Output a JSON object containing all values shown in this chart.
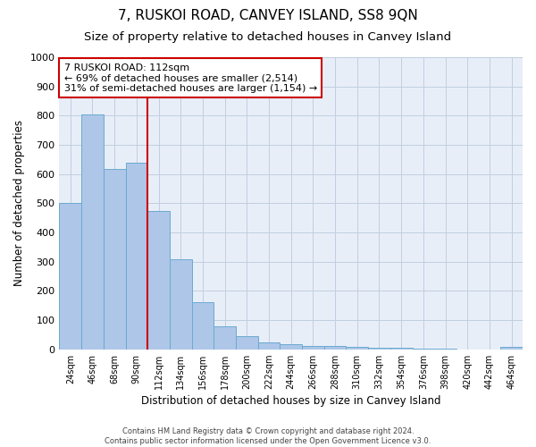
{
  "title": "7, RUSKOI ROAD, CANVEY ISLAND, SS8 9QN",
  "subtitle": "Size of property relative to detached houses in Canvey Island",
  "xlabel": "Distribution of detached houses by size in Canvey Island",
  "ylabel": "Number of detached properties",
  "categories": [
    "24sqm",
    "46sqm",
    "68sqm",
    "90sqm",
    "112sqm",
    "134sqm",
    "156sqm",
    "178sqm",
    "200sqm",
    "222sqm",
    "244sqm",
    "266sqm",
    "288sqm",
    "310sqm",
    "332sqm",
    "354sqm",
    "376sqm",
    "398sqm",
    "420sqm",
    "442sqm",
    "464sqm"
  ],
  "values": [
    500,
    805,
    618,
    638,
    475,
    308,
    160,
    78,
    46,
    25,
    17,
    10,
    10,
    8,
    6,
    5,
    3,
    2,
    0,
    0,
    8
  ],
  "bar_color": "#aec6e8",
  "bar_edge_color": "#6baad0",
  "vline_x": 4,
  "vline_color": "#cc0000",
  "annotation_text": "7 RUSKOI ROAD: 112sqm\n← 69% of detached houses are smaller (2,514)\n31% of semi-detached houses are larger (1,154) →",
  "annotation_box_color": "#ffffff",
  "annotation_box_edge": "#cc0000",
  "ylim": [
    0,
    1000
  ],
  "yticks": [
    0,
    100,
    200,
    300,
    400,
    500,
    600,
    700,
    800,
    900,
    1000
  ],
  "grid_color": "#c0cfe0",
  "bg_color": "#e8eef8",
  "title_fontsize": 11,
  "subtitle_fontsize": 9.5,
  "footnote": "Contains HM Land Registry data © Crown copyright and database right 2024.\nContains public sector information licensed under the Open Government Licence v3.0."
}
